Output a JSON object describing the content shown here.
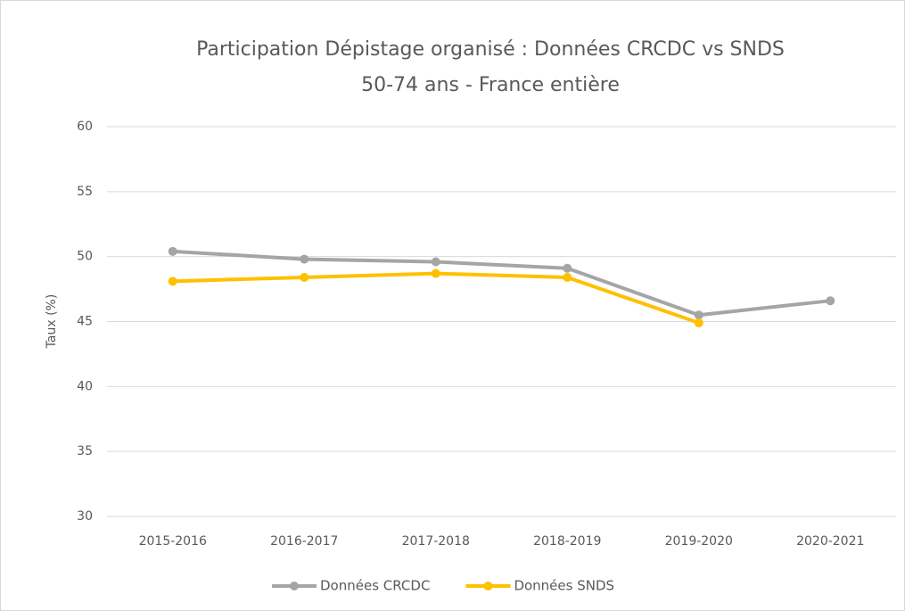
{
  "chart_data": {
    "type": "line",
    "title": "Participation Dépistage organisé : Données CRCDC vs SNDS",
    "subtitle": "50-74 ans - France entière",
    "y_label": "Taux (%)",
    "categories": [
      "2015-2016",
      "2016-2017",
      "2017-2018",
      "2018-2019",
      "2019-2020",
      "2020-2021"
    ],
    "series": [
      {
        "name": "Données CRCDC",
        "color": "#a5a5a5",
        "values": [
          50.4,
          49.8,
          49.6,
          49.1,
          45.5,
          46.6
        ]
      },
      {
        "name": "Données SNDS",
        "color": "#ffc000",
        "values": [
          48.1,
          48.4,
          48.7,
          48.4,
          44.9,
          null
        ]
      }
    ],
    "ylim": [
      30,
      60
    ],
    "yticks": [
      30,
      35,
      40,
      45,
      50,
      55,
      60
    ],
    "grid": true,
    "legend": "bottom"
  }
}
